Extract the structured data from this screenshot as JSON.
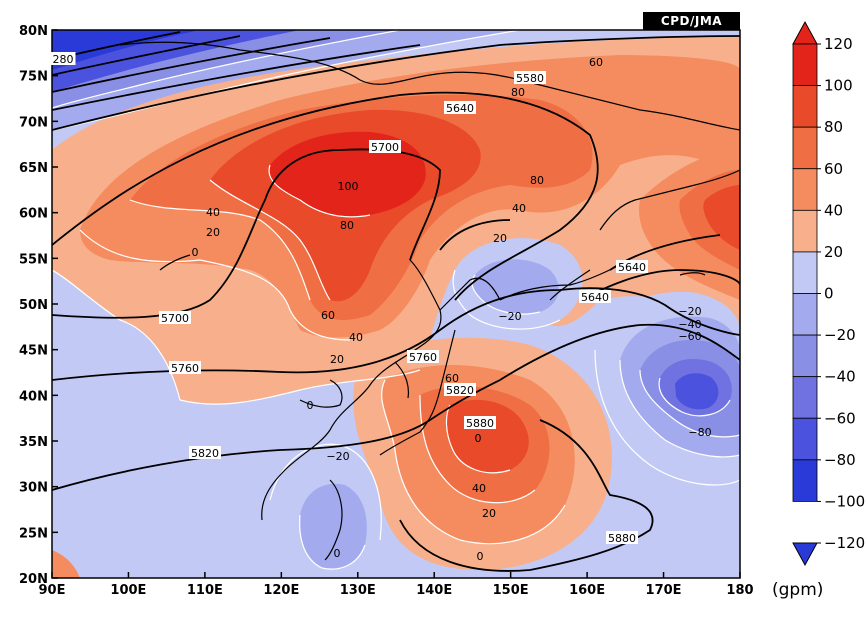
{
  "source_badge": "CPD/JMA",
  "unit_label": "(gpm)",
  "colors": {
    "positive": [
      "#f7b08b",
      "#f48c60",
      "#ef6e44",
      "#e84a2a",
      "#e2241a"
    ],
    "negative": [
      "#c3c9f5",
      "#a3abee",
      "#8a8fe6",
      "#6f72e0",
      "#4b52dd",
      "#2a3ad8"
    ],
    "land_outline": "#000000",
    "height_contour": "#000000",
    "anomaly_contour": "#ffffff"
  },
  "axes": {
    "x_ticks": [
      "90E",
      "100E",
      "110E",
      "120E",
      "130E",
      "140E",
      "150E",
      "160E",
      "170E",
      "180"
    ],
    "y_ticks": [
      "80N",
      "75N",
      "70N",
      "65N",
      "60N",
      "55N",
      "50N",
      "45N",
      "40N",
      "35N",
      "30N",
      "25N",
      "20N"
    ]
  },
  "colorbar": {
    "levels": [
      "120",
      "100",
      "80",
      "60",
      "40",
      "20",
      "0",
      "−20",
      "−40",
      "−60",
      "−80",
      "−100",
      "−120"
    ]
  },
  "contour_labels": {
    "height": [
      "5580",
      "5640",
      "5700",
      "5760",
      "5820",
      "5880",
      "5640",
      "5640",
      "5700",
      "5760",
      "5820",
      "5880",
      "280"
    ],
    "anomaly": [
      "60",
      "80",
      "100",
      "80",
      "60",
      "40",
      "40",
      "20",
      "20",
      "0",
      "0",
      "−20",
      "−20",
      "−20",
      "−40",
      "−60",
      "−80",
      "60",
      "40",
      "20",
      "0",
      "0",
      "80",
      "40",
      "20",
      "0"
    ]
  }
}
